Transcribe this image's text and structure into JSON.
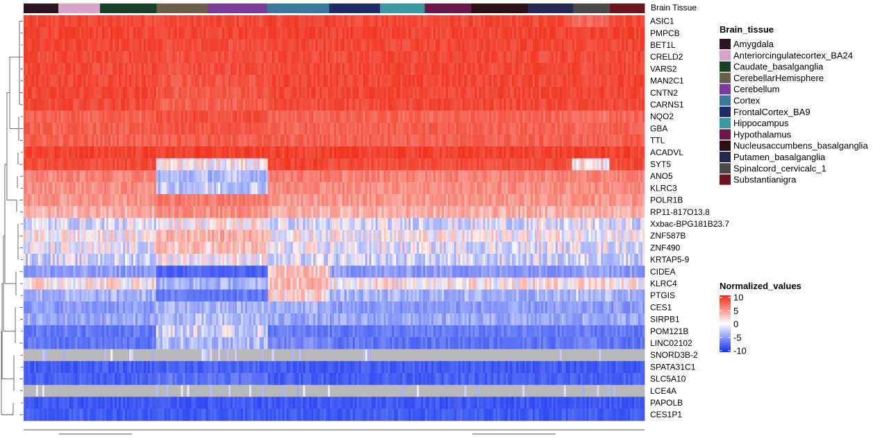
{
  "chart_data": {
    "type": "heatmap",
    "column_annotation_label": "Brain Tissue",
    "genes": [
      "ASIC1",
      "PMPCB",
      "BET1L",
      "CRELD2",
      "VARS2",
      "MAN2C1",
      "CNTN2",
      "CARNS1",
      "NQO2",
      "GBA",
      "TTL",
      "ACADVL",
      "SYT5",
      "ANO5",
      "KLRC3",
      "POLR1B",
      "RP11-817O13.8",
      "Xxbac-BPG181B23.7",
      "ZNF587B",
      "ZNF490",
      "KRTAP5-9",
      "CIDEA",
      "KLRC4",
      "PTGIS",
      "CES1",
      "SIRPB1",
      "POM121B",
      "LINC02102",
      "SNORD3B-2",
      "SPATA31C1",
      "SLC5A10",
      "LCE4A",
      "PAPOLB",
      "CES1P1"
    ],
    "tissues": [
      {
        "name": "Amygdala",
        "color": "#2a1520"
      },
      {
        "name": "Anteriorcingulatecortex_BA24",
        "color": "#d9a3c7"
      },
      {
        "name": "Caudate_basalganglia",
        "color": "#17402a"
      },
      {
        "name": "CerebellarHemisphere",
        "color": "#6b5e4c"
      },
      {
        "name": "Cerebellum",
        "color": "#7b3b9a"
      },
      {
        "name": "Cortex",
        "color": "#357a9c"
      },
      {
        "name": "FrontalCortex_BA9",
        "color": "#1c2c6a"
      },
      {
        "name": "Hippocampus",
        "color": "#3b9aa0"
      },
      {
        "name": "Hypothalamus",
        "color": "#6a1848"
      },
      {
        "name": "Nucleusaccumbens_basalganglia",
        "color": "#2a0f14"
      },
      {
        "name": "Putamen_basalganglia",
        "color": "#222850"
      },
      {
        "name": "Spinalcord_cervicalc_1",
        "color": "#4a4a48"
      },
      {
        "name": "Substantianigra",
        "color": "#6e1420"
      }
    ],
    "tissue_column_share": [
      0.056,
      0.067,
      0.091,
      0.083,
      0.095,
      0.1,
      0.082,
      0.072,
      0.075,
      0.091,
      0.073,
      0.059,
      0.056
    ],
    "mean_normalized_values": {
      "ASIC1": [
        7.5,
        7.5,
        7.5,
        7.5,
        7.5,
        7.8,
        7.5,
        7.5,
        7.5,
        7.5,
        7.5,
        5.5,
        7.5
      ],
      "PMPCB": [
        7.8,
        7.8,
        7.8,
        7.8,
        7.8,
        7.8,
        7.8,
        7.8,
        7.8,
        7.8,
        7.8,
        7.8,
        7.8
      ],
      "BET1L": [
        7.6,
        7.6,
        7.6,
        7.3,
        7.3,
        7.6,
        7.6,
        7.6,
        7.6,
        7.6,
        7.6,
        7.6,
        7.6
      ],
      "CRELD2": [
        7.4,
        7.4,
        7.4,
        7.0,
        7.0,
        7.4,
        7.4,
        7.4,
        7.4,
        7.4,
        7.4,
        7.4,
        7.4
      ],
      "VARS2": [
        7.5,
        7.5,
        7.5,
        7.0,
        7.0,
        7.5,
        7.5,
        7.5,
        7.5,
        7.5,
        7.5,
        7.5,
        7.5
      ],
      "MAN2C1": [
        7.6,
        7.6,
        7.6,
        6.5,
        6.5,
        7.6,
        7.6,
        7.6,
        7.6,
        7.6,
        7.6,
        7.6,
        7.6
      ],
      "CNTN2": [
        7.6,
        7.6,
        7.6,
        6.4,
        6.4,
        7.6,
        7.6,
        7.6,
        7.6,
        7.6,
        7.6,
        7.8,
        7.6
      ],
      "CARNS1": [
        7.4,
        7.4,
        7.4,
        5.8,
        5.8,
        7.4,
        7.4,
        7.4,
        7.4,
        7.4,
        7.4,
        7.4,
        7.4
      ],
      "NQO2": [
        5.5,
        5.5,
        5.5,
        7.0,
        7.0,
        5.5,
        5.5,
        5.5,
        5.5,
        5.5,
        5.5,
        5.0,
        5.5
      ],
      "GBA": [
        5.8,
        5.8,
        5.8,
        6.5,
        6.5,
        5.8,
        5.8,
        5.8,
        5.8,
        5.8,
        5.8,
        5.2,
        5.8
      ],
      "TTL": [
        5.8,
        5.8,
        5.8,
        6.0,
        6.0,
        5.8,
        5.8,
        5.8,
        5.8,
        5.8,
        5.8,
        5.6,
        5.8
      ],
      "ACADVL": [
        8.0,
        8.0,
        8.0,
        8.0,
        8.0,
        8.0,
        8.0,
        8.0,
        8.0,
        8.0,
        8.0,
        8.0,
        8.0
      ],
      "SYT5": [
        7.2,
        7.2,
        7.2,
        0.3,
        0.3,
        7.8,
        7.2,
        7.2,
        7.2,
        7.2,
        7.2,
        0.8,
        7.2
      ],
      "ANO5": [
        3.8,
        3.8,
        3.8,
        -1.5,
        -1.5,
        4.2,
        3.8,
        3.8,
        3.8,
        3.8,
        3.8,
        3.5,
        3.8
      ],
      "KLRC3": [
        3.2,
        3.2,
        3.2,
        -1.0,
        -1.0,
        3.5,
        3.2,
        3.2,
        3.2,
        3.2,
        3.2,
        3.2,
        3.2
      ],
      "POLR1B": [
        2.8,
        2.8,
        2.8,
        4.2,
        4.2,
        2.8,
        2.8,
        2.8,
        2.8,
        2.8,
        2.8,
        2.8,
        2.8
      ],
      "RP11-817O13.8": [
        1.8,
        1.8,
        1.8,
        3.2,
        3.2,
        1.8,
        1.8,
        1.8,
        1.8,
        1.8,
        1.8,
        1.8,
        1.8
      ],
      "Xxbac-BPG181B23.7": [
        -0.6,
        -0.6,
        -0.6,
        0.4,
        0.4,
        -0.6,
        -0.6,
        -0.6,
        -0.6,
        -0.6,
        -0.6,
        -0.4,
        -0.6
      ],
      "ZNF587B": [
        0.2,
        0.2,
        0.2,
        1.8,
        1.8,
        0.2,
        0.2,
        0.2,
        0.2,
        0.2,
        0.2,
        0.2,
        0.2
      ],
      "ZNF490": [
        -0.4,
        -0.4,
        -0.4,
        1.2,
        1.2,
        -0.4,
        -0.4,
        -0.4,
        -0.4,
        -0.4,
        -0.4,
        -0.4,
        -0.4
      ],
      "KRTAP5-9": [
        -0.8,
        -0.8,
        -0.8,
        0.2,
        0.2,
        -0.8,
        -0.8,
        -0.8,
        -0.8,
        -0.8,
        -0.8,
        -0.8,
        -0.8
      ],
      "CIDEA": [
        -2.8,
        -2.8,
        -2.8,
        -6.0,
        -6.0,
        1.2,
        -2.8,
        -2.8,
        -2.8,
        -2.8,
        -2.8,
        -2.0,
        -2.8
      ],
      "KLRC4": [
        0.5,
        0.5,
        0.5,
        -1.8,
        -1.8,
        1.5,
        0.5,
        0.5,
        0.5,
        0.5,
        0.5,
        0.8,
        0.5
      ],
      "PTGIS": [
        -1.8,
        -1.8,
        -1.8,
        -4.5,
        -4.5,
        0.8,
        -1.8,
        -1.8,
        -1.8,
        -1.8,
        -1.8,
        -1.2,
        -1.8
      ],
      "CES1": [
        -2.8,
        -2.8,
        -2.8,
        -1.8,
        -1.8,
        -1.8,
        -2.8,
        -2.8,
        -2.8,
        -2.8,
        -2.8,
        -2.8,
        -2.8
      ],
      "SIRPB1": [
        -2.2,
        -2.2,
        -2.2,
        -1.5,
        -1.5,
        -2.2,
        -2.2,
        -2.2,
        -2.2,
        -2.2,
        -2.2,
        -2.2,
        -2.2
      ],
      "POM121B": [
        -4.5,
        -4.5,
        -4.5,
        -0.8,
        -0.8,
        -4.5,
        -4.5,
        -4.5,
        -4.5,
        -4.5,
        -4.5,
        -4.5,
        -4.5
      ],
      "LINC02102": [
        -4.8,
        -4.8,
        -4.8,
        -1.5,
        -1.5,
        -3.8,
        -4.8,
        -4.8,
        -4.8,
        -4.8,
        -4.8,
        -4.2,
        -4.8
      ],
      "SNORD3B-2": [
        null,
        null,
        null,
        null,
        null,
        null,
        null,
        null,
        null,
        null,
        null,
        null,
        null
      ],
      "SPATA31C1": [
        -6.5,
        -6.5,
        -6.5,
        -6.0,
        -6.0,
        -6.5,
        -6.5,
        -6.5,
        -6.5,
        -6.5,
        -6.5,
        -6.5,
        -6.5
      ],
      "SLC5A10": [
        -6.2,
        -6.2,
        -6.2,
        -4.8,
        -4.8,
        -6.2,
        -6.2,
        -6.2,
        -6.2,
        -6.2,
        -6.2,
        -6.2,
        -6.2
      ],
      "LCE4A": [
        null,
        null,
        null,
        null,
        null,
        null,
        null,
        null,
        null,
        null,
        null,
        null,
        null
      ],
      "PAPOLB": [
        -6.8,
        -6.8,
        -6.8,
        -6.8,
        -6.8,
        -6.8,
        -6.8,
        -6.8,
        -6.8,
        -6.8,
        -6.8,
        -6.8,
        -6.8
      ],
      "CES1P1": [
        -6.4,
        -6.4,
        -6.4,
        -6.4,
        -6.4,
        -6.4,
        -6.4,
        -6.4,
        -6.4,
        -6.4,
        -6.4,
        -6.4,
        -6.4
      ]
    },
    "legend": {
      "tissue_title": "Brain_tissue",
      "scale_title": "Normalized_values",
      "scale_ticks": [
        10,
        5,
        0,
        -5,
        -10
      ],
      "scale_colors": {
        "high": "#f02a14",
        "mid": "#ffffff",
        "low": "#1030f0",
        "na": "#b8b8b8"
      }
    }
  }
}
